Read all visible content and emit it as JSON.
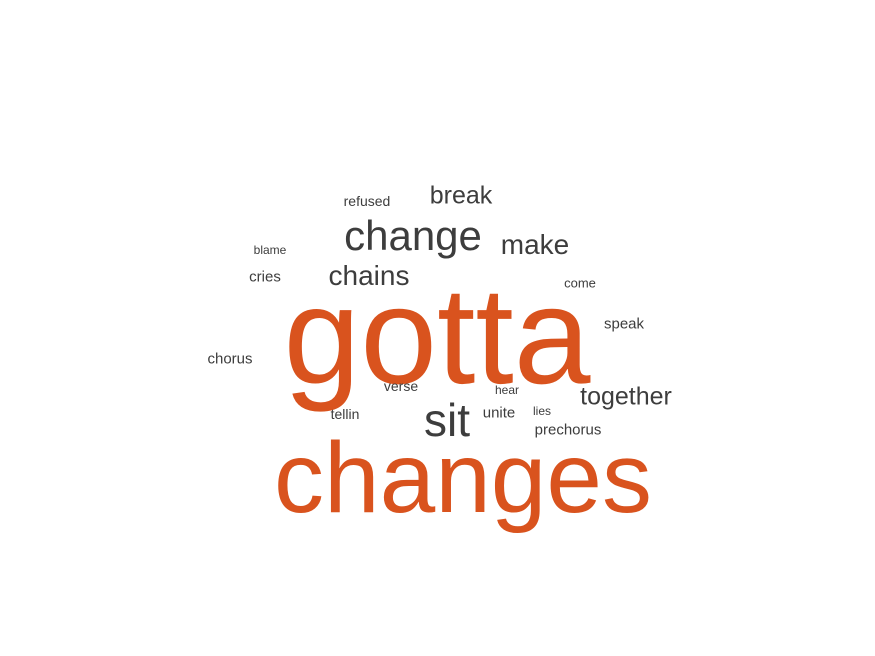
{
  "colors": {
    "accent": "#d9531e",
    "text": "#3d3d3d",
    "background": "#ffffff"
  },
  "words": [
    {
      "id": "gotta",
      "text": "gotta",
      "emphasis": true
    },
    {
      "id": "changes",
      "text": "changes",
      "emphasis": true
    },
    {
      "id": "sit",
      "text": "sit",
      "emphasis": false
    },
    {
      "id": "change",
      "text": "change",
      "emphasis": false
    },
    {
      "id": "chains",
      "text": "chains",
      "emphasis": false
    },
    {
      "id": "make",
      "text": "make",
      "emphasis": false
    },
    {
      "id": "break",
      "text": "break",
      "emphasis": false
    },
    {
      "id": "together",
      "text": "together",
      "emphasis": false
    },
    {
      "id": "refused",
      "text": "refused",
      "emphasis": false
    },
    {
      "id": "blame",
      "text": "blame",
      "emphasis": false
    },
    {
      "id": "cries",
      "text": "cries",
      "emphasis": false
    },
    {
      "id": "come",
      "text": "come",
      "emphasis": false
    },
    {
      "id": "speak",
      "text": "speak",
      "emphasis": false
    },
    {
      "id": "chorus",
      "text": "chorus",
      "emphasis": false
    },
    {
      "id": "verse",
      "text": "verse",
      "emphasis": false
    },
    {
      "id": "hear",
      "text": "hear",
      "emphasis": false
    },
    {
      "id": "tellin",
      "text": "tellin",
      "emphasis": false
    },
    {
      "id": "unite",
      "text": "unite",
      "emphasis": false
    },
    {
      "id": "lies",
      "text": "lies",
      "emphasis": false
    },
    {
      "id": "prechorus",
      "text": "prechorus",
      "emphasis": false
    }
  ]
}
